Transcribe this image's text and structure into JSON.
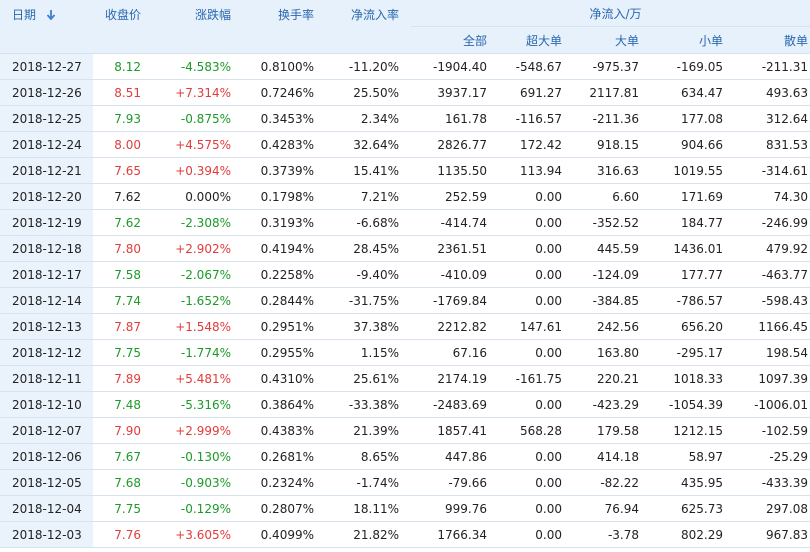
{
  "header": {
    "date": "日期",
    "close": "收盘价",
    "change_pct": "涨跌幅",
    "turnover": "换手率",
    "net_inflow_rate": "净流入率",
    "net_inflow_group": "净流入/万",
    "sub": {
      "total": "全部",
      "super_large": "超大单",
      "large": "大单",
      "small": "小单",
      "retail": "散单"
    },
    "sort_icon": "sort-down-arrow-icon"
  },
  "colors": {
    "up": "#e13c3c",
    "down": "#1c9a2a",
    "header_bg": "#e6f1fb",
    "header_text": "#2a67b0",
    "date_col_bg": "#eaf3fc"
  },
  "rows": [
    {
      "date": "2018-12-27",
      "close": "8.12",
      "change_pct": "-4.583%",
      "turnover": "0.8100%",
      "net_inflow_rate": "-11.20%",
      "total": "-1904.40",
      "super_large": "-548.67",
      "large": "-975.37",
      "small": "-169.05",
      "retail": "-211.31",
      "trend": "down"
    },
    {
      "date": "2018-12-26",
      "close": "8.51",
      "change_pct": "+7.314%",
      "turnover": "0.7246%",
      "net_inflow_rate": "25.50%",
      "total": "3937.17",
      "super_large": "691.27",
      "large": "2117.81",
      "small": "634.47",
      "retail": "493.63",
      "trend": "up"
    },
    {
      "date": "2018-12-25",
      "close": "7.93",
      "change_pct": "-0.875%",
      "turnover": "0.3453%",
      "net_inflow_rate": "2.34%",
      "total": "161.78",
      "super_large": "-116.57",
      "large": "-211.36",
      "small": "177.08",
      "retail": "312.64",
      "trend": "down"
    },
    {
      "date": "2018-12-24",
      "close": "8.00",
      "change_pct": "+4.575%",
      "turnover": "0.4283%",
      "net_inflow_rate": "32.64%",
      "total": "2826.77",
      "super_large": "172.42",
      "large": "918.15",
      "small": "904.66",
      "retail": "831.53",
      "trend": "up"
    },
    {
      "date": "2018-12-21",
      "close": "7.65",
      "change_pct": "+0.394%",
      "turnover": "0.3739%",
      "net_inflow_rate": "15.41%",
      "total": "1135.50",
      "super_large": "113.94",
      "large": "316.63",
      "small": "1019.55",
      "retail": "-314.61",
      "trend": "up"
    },
    {
      "date": "2018-12-20",
      "close": "7.62",
      "change_pct": "0.000%",
      "turnover": "0.1798%",
      "net_inflow_rate": "7.21%",
      "total": "252.59",
      "super_large": "0.00",
      "large": "6.60",
      "small": "171.69",
      "retail": "74.30",
      "trend": "flat"
    },
    {
      "date": "2018-12-19",
      "close": "7.62",
      "change_pct": "-2.308%",
      "turnover": "0.3193%",
      "net_inflow_rate": "-6.68%",
      "total": "-414.74",
      "super_large": "0.00",
      "large": "-352.52",
      "small": "184.77",
      "retail": "-246.99",
      "trend": "down"
    },
    {
      "date": "2018-12-18",
      "close": "7.80",
      "change_pct": "+2.902%",
      "turnover": "0.4194%",
      "net_inflow_rate": "28.45%",
      "total": "2361.51",
      "super_large": "0.00",
      "large": "445.59",
      "small": "1436.01",
      "retail": "479.92",
      "trend": "up"
    },
    {
      "date": "2018-12-17",
      "close": "7.58",
      "change_pct": "-2.067%",
      "turnover": "0.2258%",
      "net_inflow_rate": "-9.40%",
      "total": "-410.09",
      "super_large": "0.00",
      "large": "-124.09",
      "small": "177.77",
      "retail": "-463.77",
      "trend": "down"
    },
    {
      "date": "2018-12-14",
      "close": "7.74",
      "change_pct": "-1.652%",
      "turnover": "0.2844%",
      "net_inflow_rate": "-31.75%",
      "total": "-1769.84",
      "super_large": "0.00",
      "large": "-384.85",
      "small": "-786.57",
      "retail": "-598.43",
      "trend": "down"
    },
    {
      "date": "2018-12-13",
      "close": "7.87",
      "change_pct": "+1.548%",
      "turnover": "0.2951%",
      "net_inflow_rate": "37.38%",
      "total": "2212.82",
      "super_large": "147.61",
      "large": "242.56",
      "small": "656.20",
      "retail": "1166.45",
      "trend": "up"
    },
    {
      "date": "2018-12-12",
      "close": "7.75",
      "change_pct": "-1.774%",
      "turnover": "0.2955%",
      "net_inflow_rate": "1.15%",
      "total": "67.16",
      "super_large": "0.00",
      "large": "163.80",
      "small": "-295.17",
      "retail": "198.54",
      "trend": "down"
    },
    {
      "date": "2018-12-11",
      "close": "7.89",
      "change_pct": "+5.481%",
      "turnover": "0.4310%",
      "net_inflow_rate": "25.61%",
      "total": "2174.19",
      "super_large": "-161.75",
      "large": "220.21",
      "small": "1018.33",
      "retail": "1097.39",
      "trend": "up"
    },
    {
      "date": "2018-12-10",
      "close": "7.48",
      "change_pct": "-5.316%",
      "turnover": "0.3864%",
      "net_inflow_rate": "-33.38%",
      "total": "-2483.69",
      "super_large": "0.00",
      "large": "-423.29",
      "small": "-1054.39",
      "retail": "-1006.01",
      "trend": "down"
    },
    {
      "date": "2018-12-07",
      "close": "7.90",
      "change_pct": "+2.999%",
      "turnover": "0.4383%",
      "net_inflow_rate": "21.39%",
      "total": "1857.41",
      "super_large": "568.28",
      "large": "179.58",
      "small": "1212.15",
      "retail": "-102.59",
      "trend": "up"
    },
    {
      "date": "2018-12-06",
      "close": "7.67",
      "change_pct": "-0.130%",
      "turnover": "0.2681%",
      "net_inflow_rate": "8.65%",
      "total": "447.86",
      "super_large": "0.00",
      "large": "414.18",
      "small": "58.97",
      "retail": "-25.29",
      "trend": "down"
    },
    {
      "date": "2018-12-05",
      "close": "7.68",
      "change_pct": "-0.903%",
      "turnover": "0.2324%",
      "net_inflow_rate": "-1.74%",
      "total": "-79.66",
      "super_large": "0.00",
      "large": "-82.22",
      "small": "435.95",
      "retail": "-433.39",
      "trend": "down"
    },
    {
      "date": "2018-12-04",
      "close": "7.75",
      "change_pct": "-0.129%",
      "turnover": "0.2807%",
      "net_inflow_rate": "18.11%",
      "total": "999.76",
      "super_large": "0.00",
      "large": "76.94",
      "small": "625.73",
      "retail": "297.08",
      "trend": "down"
    },
    {
      "date": "2018-12-03",
      "close": "7.76",
      "change_pct": "+3.605%",
      "turnover": "0.4099%",
      "net_inflow_rate": "21.82%",
      "total": "1766.34",
      "super_large": "0.00",
      "large": "-3.78",
      "small": "802.29",
      "retail": "967.83",
      "trend": "up"
    }
  ]
}
